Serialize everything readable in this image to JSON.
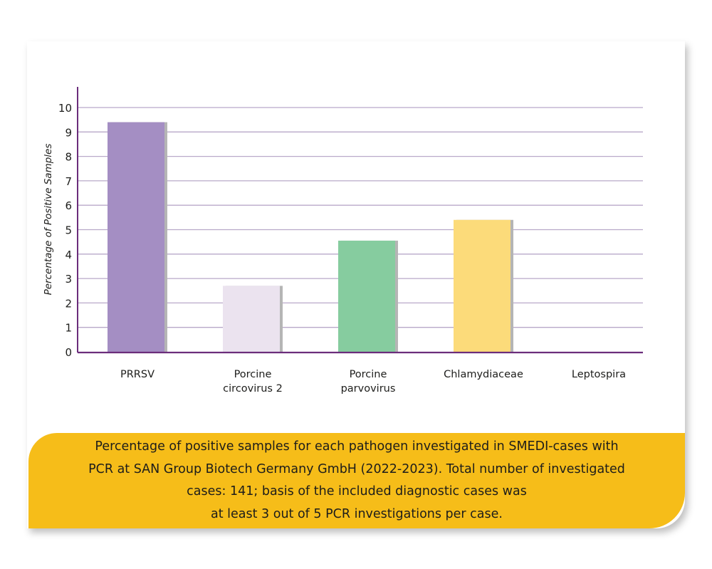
{
  "chart_data": {
    "type": "bar",
    "title": "",
    "xlabel": "",
    "ylabel": "Percentage of Positive Samples",
    "ylim": [
      0,
      10
    ],
    "yticks": [
      "0",
      "1",
      "2",
      "3",
      "4",
      "5",
      "6",
      "7",
      "8",
      "9",
      "10"
    ],
    "grid": true,
    "categories": [
      [
        "PRRSV"
      ],
      [
        "Porcine",
        "circovirus 2"
      ],
      [
        "Porcine",
        "parvovirus"
      ],
      [
        "Chlamydiaceae"
      ],
      [
        "Leptospira"
      ]
    ],
    "values": [
      9.4,
      2.7,
      4.55,
      5.4,
      0
    ],
    "colors": [
      "#a48ec3",
      "#ebe3ef",
      "#86cc9f",
      "#fcdb7a",
      "#cccccc"
    ]
  },
  "caption": {
    "lines": [
      "Percentage of positive samples for each pathogen investigated in SMEDI-cases with",
      "PCR at SAN Group Biotech Germany GmbH (2022-2023). Total number of investigated",
      "cases: 141; basis of the included diagnostic cases was",
      "at least 3 out of 5 PCR investigations per case."
    ]
  },
  "colors": {
    "axis": "#6b2d7b",
    "grid": "#b9a9c9",
    "caption_bg": "#f6bd19"
  }
}
